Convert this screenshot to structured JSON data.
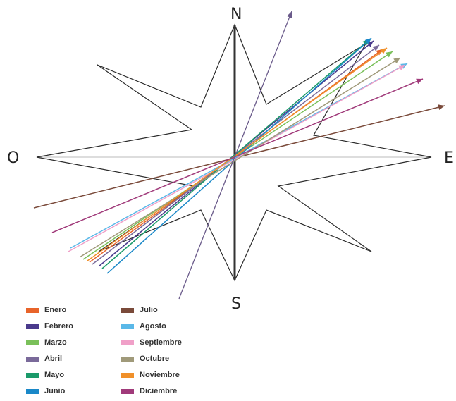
{
  "cardinals": {
    "north": "N",
    "south": "S",
    "west": "O",
    "east": "E"
  },
  "colors": {
    "star_outline": "#2b2b2b",
    "axis": "#333333",
    "ew_line": "#bbbbbb"
  },
  "months": [
    {
      "name": "Enero",
      "color": "#e8642a"
    },
    {
      "name": "Febrero",
      "color": "#4a3a8c"
    },
    {
      "name": "Marzo",
      "color": "#7ac05a"
    },
    {
      "name": "Abril",
      "color": "#7a6a9a"
    },
    {
      "name": "Mayo",
      "color": "#1a9a6a"
    },
    {
      "name": "Junio",
      "color": "#1a88c8"
    },
    {
      "name": "Julio",
      "color": "#7a4a3a"
    },
    {
      "name": "Agosto",
      "color": "#5ab8e8"
    },
    {
      "name": "Septiembre",
      "color": "#f0a0c8"
    },
    {
      "name": "Octubre",
      "color": "#a09a7a"
    },
    {
      "name": "Noviembre",
      "color": "#f0902a"
    },
    {
      "name": "Diciembre",
      "color": "#a03a7a"
    }
  ],
  "extra_line_color": "#6a5a8a"
}
